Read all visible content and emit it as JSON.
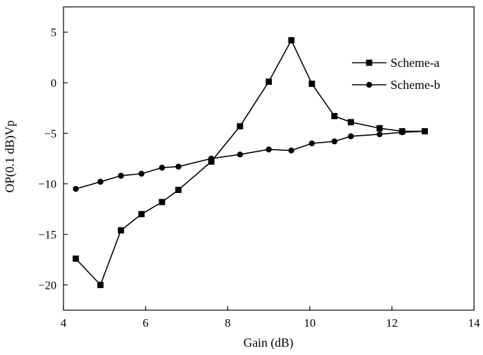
{
  "chart_data": {
    "type": "line",
    "title": "",
    "xlabel": "Gain (dB)",
    "ylabel": "OP(0.1 dB)Vp",
    "xlim": [
      4,
      14
    ],
    "ylim": [
      -22.5,
      7.5
    ],
    "xticks": [
      4,
      6,
      8,
      10,
      12,
      14
    ],
    "yticks": [
      5,
      0,
      -5,
      -10,
      -15,
      -20
    ],
    "grid": false,
    "legend_position": "top-right",
    "colors": {
      "line": "#000000",
      "axis": "#000000"
    },
    "series": [
      {
        "name": "Scheme-a",
        "marker": "square",
        "x": [
          4.3,
          4.9,
          5.4,
          5.9,
          6.4,
          6.8,
          7.6,
          8.3,
          9.0,
          9.55,
          10.05,
          10.6,
          11.0,
          11.7,
          12.25,
          12.8
        ],
        "y": [
          -17.4,
          -20.0,
          -14.6,
          -13.0,
          -11.8,
          -10.6,
          -7.8,
          -4.3,
          0.1,
          4.2,
          -0.1,
          -3.3,
          -3.9,
          -4.5,
          -4.8,
          -4.8
        ]
      },
      {
        "name": "Scheme-b",
        "marker": "circle",
        "x": [
          4.3,
          4.9,
          5.4,
          5.9,
          6.4,
          6.8,
          7.6,
          8.3,
          9.0,
          9.55,
          10.05,
          10.6,
          11.0,
          11.7,
          12.25,
          12.8
        ],
        "y": [
          -10.5,
          -9.8,
          -9.2,
          -9.0,
          -8.4,
          -8.3,
          -7.5,
          -7.1,
          -6.6,
          -6.7,
          -6.0,
          -5.8,
          -5.3,
          -5.1,
          -4.9,
          -4.8
        ]
      }
    ]
  }
}
